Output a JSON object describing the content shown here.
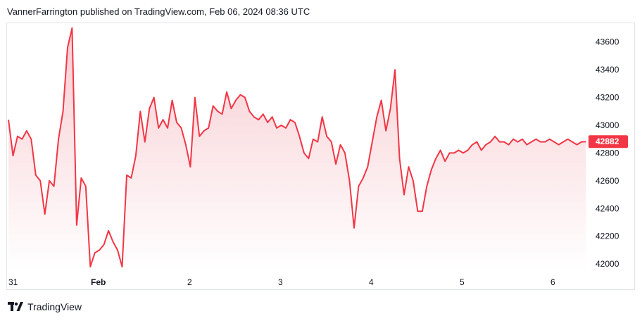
{
  "header": {
    "published": "VannerFarrington published on TradingView.com, Feb 06, 2024 08:36 UTC"
  },
  "footer": {
    "brand": "TradingView"
  },
  "colors": {
    "line": "#f23645",
    "area_top": "#f7c7cc",
    "area_bottom": "#ffffff",
    "price_label_bg": "#f23645",
    "border": "#e0e3eb"
  },
  "chart_data": {
    "type": "area",
    "x_ticks": [
      "31",
      "Feb",
      "2",
      "3",
      "4",
      "5",
      "6"
    ],
    "y_ticks": [
      42000,
      42200,
      42400,
      42600,
      42800,
      43000,
      43200,
      43400,
      43600
    ],
    "ylim": [
      41950,
      43720
    ],
    "last_price": "42882",
    "x": [
      0.0,
      0.05,
      0.1,
      0.15,
      0.2,
      0.25,
      0.3,
      0.35,
      0.4,
      0.45,
      0.5,
      0.55,
      0.6,
      0.65,
      0.7,
      0.75,
      0.8,
      0.85,
      0.9,
      0.95,
      1.0,
      1.05,
      1.1,
      1.15,
      1.2,
      1.25,
      1.3,
      1.35,
      1.4,
      1.45,
      1.5,
      1.55,
      1.6,
      1.65,
      1.7,
      1.75,
      1.8,
      1.85,
      1.9,
      1.95,
      2.0,
      2.05,
      2.1,
      2.15,
      2.2,
      2.25,
      2.3,
      2.35,
      2.4,
      2.45,
      2.5,
      2.55,
      2.6,
      2.65,
      2.7,
      2.75,
      2.8,
      2.85,
      2.9,
      2.95,
      3.0,
      3.05,
      3.1,
      3.15,
      3.2,
      3.25,
      3.3,
      3.35,
      3.4,
      3.45,
      3.5,
      3.55,
      3.6,
      3.65,
      3.7,
      3.75,
      3.8,
      3.85,
      3.9,
      3.95,
      4.0,
      4.05,
      4.1,
      4.15,
      4.2,
      4.25,
      4.3,
      4.35,
      4.4,
      4.45,
      4.5,
      4.55,
      4.6,
      4.65,
      4.7,
      4.75,
      4.8,
      4.85,
      4.9,
      4.95,
      5.0,
      5.05,
      5.1,
      5.15,
      5.2,
      5.25,
      5.3,
      5.35,
      5.4,
      5.45,
      5.5,
      5.55,
      5.6,
      5.65,
      5.7,
      5.75,
      5.8,
      5.85,
      5.9,
      5.95,
      6.0,
      6.05,
      6.1,
      6.15,
      6.2,
      6.25,
      6.3,
      6.35
    ],
    "y": [
      43040,
      42780,
      42920,
      42900,
      42960,
      42900,
      42640,
      42600,
      42360,
      42600,
      42560,
      42900,
      43100,
      43560,
      43700,
      42280,
      42620,
      42560,
      41980,
      42080,
      42100,
      42140,
      42240,
      42160,
      42100,
      41980,
      42640,
      42620,
      42780,
      43100,
      42880,
      43120,
      43200,
      42980,
      43040,
      42980,
      43180,
      43020,
      42980,
      42860,
      42700,
      43200,
      42920,
      42960,
      42980,
      43140,
      43100,
      43080,
      43240,
      43120,
      43180,
      43220,
      43200,
      43100,
      43060,
      43040,
      43080,
      43020,
      43060,
      42980,
      43000,
      42980,
      43040,
      43020,
      42920,
      42800,
      42760,
      42900,
      42880,
      43060,
      42920,
      42880,
      42720,
      42860,
      42800,
      42600,
      42260,
      42560,
      42620,
      42700,
      42880,
      43060,
      43180,
      42960,
      43120,
      43400,
      42760,
      42500,
      42700,
      42600,
      42380,
      42380,
      42560,
      42680,
      42760,
      42820,
      42740,
      42800,
      42800,
      42820,
      42800,
      42820,
      42860,
      42880,
      42820,
      42860,
      42880,
      42920,
      42880,
      42880,
      42860,
      42900,
      42880,
      42900,
      42860,
      42880,
      42900,
      42880,
      42880,
      42900,
      42880,
      42860,
      42880,
      42900,
      42880,
      42860,
      42880,
      42882
    ]
  }
}
